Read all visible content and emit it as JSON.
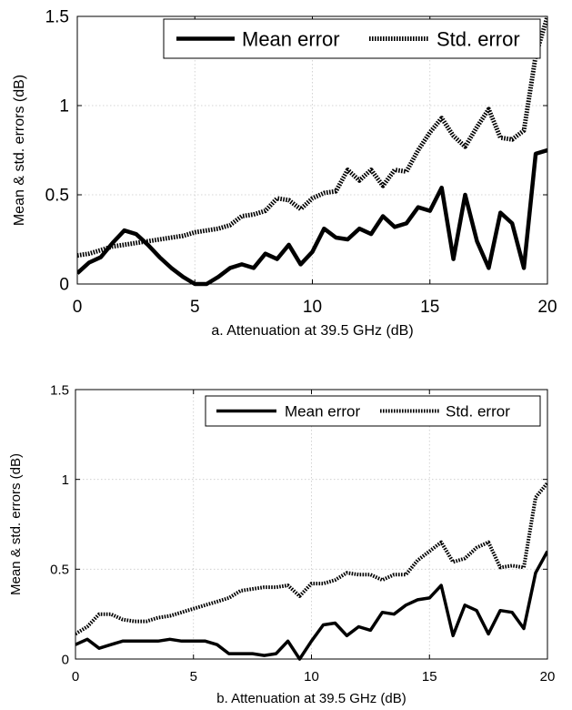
{
  "chart_data": [
    {
      "type": "line",
      "xlabel": "a.  Attenuation at 39.5 GHz (dB)",
      "ylabel": "Mean & std. errors (dB)",
      "xlim": [
        0,
        20
      ],
      "ylim": [
        0,
        1.5
      ],
      "xticks": [
        "0",
        "5",
        "10",
        "15",
        "20"
      ],
      "yticks": [
        "0",
        "0.5",
        "1",
        "1.5"
      ],
      "grid": true,
      "legend_position": "top-right",
      "series": [
        {
          "name": "Mean error",
          "style": "solid",
          "color": "#000000",
          "x": [
            0,
            0.5,
            1,
            1.5,
            2,
            2.5,
            3,
            3.5,
            4,
            4.5,
            5,
            5.5,
            6,
            6.5,
            7,
            7.5,
            8,
            8.5,
            9,
            9.5,
            10,
            10.5,
            11,
            11.5,
            12,
            12.5,
            13,
            13.5,
            14,
            14.5,
            15,
            15.5,
            16,
            16.5,
            17,
            17.5,
            18,
            18.5,
            19,
            19.5,
            20
          ],
          "y": [
            0.06,
            0.12,
            0.15,
            0.23,
            0.3,
            0.28,
            0.22,
            0.15,
            0.09,
            0.04,
            0.0,
            0.0,
            0.04,
            0.09,
            0.11,
            0.09,
            0.17,
            0.14,
            0.22,
            0.11,
            0.18,
            0.31,
            0.26,
            0.25,
            0.31,
            0.28,
            0.38,
            0.32,
            0.34,
            0.43,
            0.41,
            0.54,
            0.14,
            0.5,
            0.24,
            0.09,
            0.4,
            0.34,
            0.09,
            0.73,
            0.75
          ]
        },
        {
          "name": "Std. error",
          "style": "dotted",
          "color": "#000000",
          "x": [
            0,
            0.5,
            1,
            1.5,
            2,
            2.5,
            3,
            3.5,
            4,
            4.5,
            5,
            5.5,
            6,
            6.5,
            7,
            7.5,
            8,
            8.5,
            9,
            9.5,
            10,
            10.5,
            11,
            11.5,
            12,
            12.5,
            13,
            13.5,
            14,
            14.5,
            15,
            15.5,
            16,
            16.5,
            17,
            17.5,
            18,
            18.5,
            19,
            19.5,
            20
          ],
          "y": [
            0.16,
            0.17,
            0.19,
            0.21,
            0.22,
            0.23,
            0.24,
            0.25,
            0.26,
            0.27,
            0.29,
            0.3,
            0.31,
            0.33,
            0.38,
            0.39,
            0.41,
            0.48,
            0.47,
            0.42,
            0.48,
            0.51,
            0.52,
            0.64,
            0.58,
            0.64,
            0.55,
            0.64,
            0.63,
            0.75,
            0.85,
            0.93,
            0.83,
            0.77,
            0.88,
            0.98,
            0.82,
            0.81,
            0.86,
            1.28,
            1.5
          ]
        }
      ]
    },
    {
      "type": "line",
      "xlabel": "b.  Attenuation at 39.5 GHz (dB)",
      "ylabel": "Mean & std. errors (dB)",
      "xlim": [
        0,
        20
      ],
      "ylim": [
        0,
        1.5
      ],
      "xticks": [
        "0",
        "5",
        "10",
        "15",
        "20"
      ],
      "yticks": [
        "0",
        "0.5",
        "1",
        "1.5"
      ],
      "grid": true,
      "legend_position": "top-right",
      "series": [
        {
          "name": "Mean error",
          "style": "solid",
          "color": "#000000",
          "x": [
            0,
            0.5,
            1,
            1.5,
            2,
            2.5,
            3,
            3.5,
            4,
            4.5,
            5,
            5.5,
            6,
            6.5,
            7,
            7.5,
            8,
            8.5,
            9,
            9.5,
            10,
            10.5,
            11,
            11.5,
            12,
            12.5,
            13,
            13.5,
            14,
            14.5,
            15,
            15.5,
            16,
            16.5,
            17,
            17.5,
            18,
            18.5,
            19,
            19.5,
            20
          ],
          "y": [
            0.08,
            0.11,
            0.06,
            0.08,
            0.1,
            0.1,
            0.1,
            0.1,
            0.11,
            0.1,
            0.1,
            0.1,
            0.08,
            0.03,
            0.03,
            0.03,
            0.02,
            0.03,
            0.1,
            0.0,
            0.1,
            0.19,
            0.2,
            0.13,
            0.18,
            0.16,
            0.26,
            0.25,
            0.3,
            0.33,
            0.34,
            0.41,
            0.13,
            0.3,
            0.27,
            0.14,
            0.27,
            0.26,
            0.17,
            0.48,
            0.6
          ]
        },
        {
          "name": "Std. error",
          "style": "dotted",
          "color": "#000000",
          "x": [
            0,
            0.5,
            1,
            1.5,
            2,
            2.5,
            3,
            3.5,
            4,
            4.5,
            5,
            5.5,
            6,
            6.5,
            7,
            7.5,
            8,
            8.5,
            9,
            9.5,
            10,
            10.5,
            11,
            11.5,
            12,
            12.5,
            13,
            13.5,
            14,
            14.5,
            15,
            15.5,
            16,
            16.5,
            17,
            17.5,
            18,
            18.5,
            19,
            19.5,
            20
          ],
          "y": [
            0.14,
            0.18,
            0.25,
            0.25,
            0.22,
            0.21,
            0.21,
            0.23,
            0.24,
            0.26,
            0.28,
            0.3,
            0.32,
            0.34,
            0.38,
            0.39,
            0.4,
            0.4,
            0.41,
            0.35,
            0.42,
            0.42,
            0.44,
            0.48,
            0.47,
            0.47,
            0.44,
            0.47,
            0.47,
            0.55,
            0.6,
            0.65,
            0.54,
            0.56,
            0.62,
            0.65,
            0.51,
            0.52,
            0.51,
            0.9,
            0.98
          ]
        }
      ]
    }
  ]
}
